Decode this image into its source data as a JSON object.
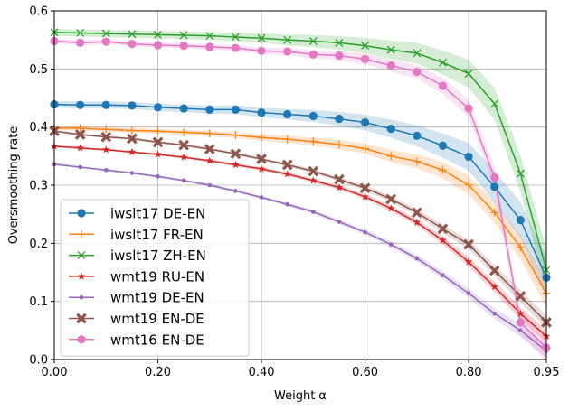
{
  "chart_data": {
    "type": "line",
    "title": "",
    "xlabel": "Weight α",
    "ylabel": "Oversmoothing rate",
    "xlim": [
      0,
      0.95
    ],
    "ylim": [
      0,
      0.6
    ],
    "grid": true,
    "legend_position": "lower-left",
    "x": [
      0,
      0.05,
      0.1,
      0.15,
      0.2,
      0.25,
      0.3,
      0.35,
      0.4,
      0.45,
      0.5,
      0.55,
      0.6,
      0.65,
      0.7,
      0.75,
      0.8,
      0.85,
      0.9,
      0.95
    ],
    "x_ticks": [
      0,
      0.2,
      0.4,
      0.6,
      0.8,
      0.95
    ],
    "x_tick_labels": [
      "0.00",
      "0.20",
      "0.40",
      "0.60",
      "0.80",
      "0.95"
    ],
    "y_ticks": [
      0,
      0.1,
      0.2,
      0.3,
      0.4,
      0.5,
      0.6
    ],
    "y_tick_labels": [
      "0.0",
      "0.1",
      "0.2",
      "0.3",
      "0.4",
      "0.5",
      "0.6"
    ],
    "series": [
      {
        "name": "iwslt17 DE-EN",
        "color": "#1f77b4",
        "marker": "circle",
        "band": 0.006,
        "values": [
          0.439,
          0.438,
          0.438,
          0.437,
          0.434,
          0.432,
          0.43,
          0.43,
          0.425,
          0.422,
          0.419,
          0.414,
          0.408,
          0.397,
          0.385,
          0.368,
          0.349,
          0.297,
          0.24,
          0.141
        ]
      },
      {
        "name": "iwslt17 FR-EN",
        "color": "#ff7f0e",
        "marker": "plus",
        "band": 0.004,
        "values": [
          0.398,
          0.398,
          0.396,
          0.394,
          0.393,
          0.391,
          0.389,
          0.386,
          0.382,
          0.379,
          0.375,
          0.37,
          0.363,
          0.35,
          0.341,
          0.326,
          0.3,
          0.253,
          0.193,
          0.114
        ]
      },
      {
        "name": "iwslt17 ZH-EN",
        "color": "#2ca02c",
        "marker": "x",
        "band": 0.006,
        "values": [
          0.563,
          0.562,
          0.561,
          0.56,
          0.559,
          0.558,
          0.557,
          0.555,
          0.553,
          0.55,
          0.548,
          0.545,
          0.54,
          0.533,
          0.527,
          0.511,
          0.492,
          0.44,
          0.32,
          0.154
        ]
      },
      {
        "name": "wmt19 RU-EN",
        "color": "#d62728",
        "marker": "star",
        "band": 0.002,
        "values": [
          0.367,
          0.364,
          0.361,
          0.357,
          0.353,
          0.348,
          0.342,
          0.335,
          0.328,
          0.319,
          0.308,
          0.296,
          0.28,
          0.26,
          0.236,
          0.205,
          0.168,
          0.125,
          0.079,
          0.04
        ]
      },
      {
        "name": "wmt19 DE-EN",
        "color": "#9467bd",
        "marker": "dot",
        "band": 0.002,
        "values": [
          0.336,
          0.331,
          0.326,
          0.321,
          0.315,
          0.308,
          0.3,
          0.29,
          0.279,
          0.267,
          0.254,
          0.237,
          0.219,
          0.198,
          0.174,
          0.145,
          0.114,
          0.079,
          0.05,
          0.015
        ]
      },
      {
        "name": "wmt19 EN-DE",
        "color": "#8c564b",
        "marker": "xfilled",
        "band": 0.002,
        "values": [
          0.393,
          0.387,
          0.383,
          0.38,
          0.374,
          0.369,
          0.362,
          0.354,
          0.345,
          0.335,
          0.324,
          0.31,
          0.295,
          0.276,
          0.253,
          0.225,
          0.198,
          0.153,
          0.109,
          0.064
        ]
      },
      {
        "name": "wmt16 EN-DE",
        "color": "#e377c2",
        "marker": "circle",
        "band": 0.004,
        "values": [
          0.548,
          0.545,
          0.547,
          0.543,
          0.541,
          0.54,
          0.538,
          0.536,
          0.531,
          0.53,
          0.525,
          0.523,
          0.517,
          0.506,
          0.495,
          0.471,
          0.432,
          0.313,
          0.064,
          0.02
        ]
      }
    ]
  }
}
